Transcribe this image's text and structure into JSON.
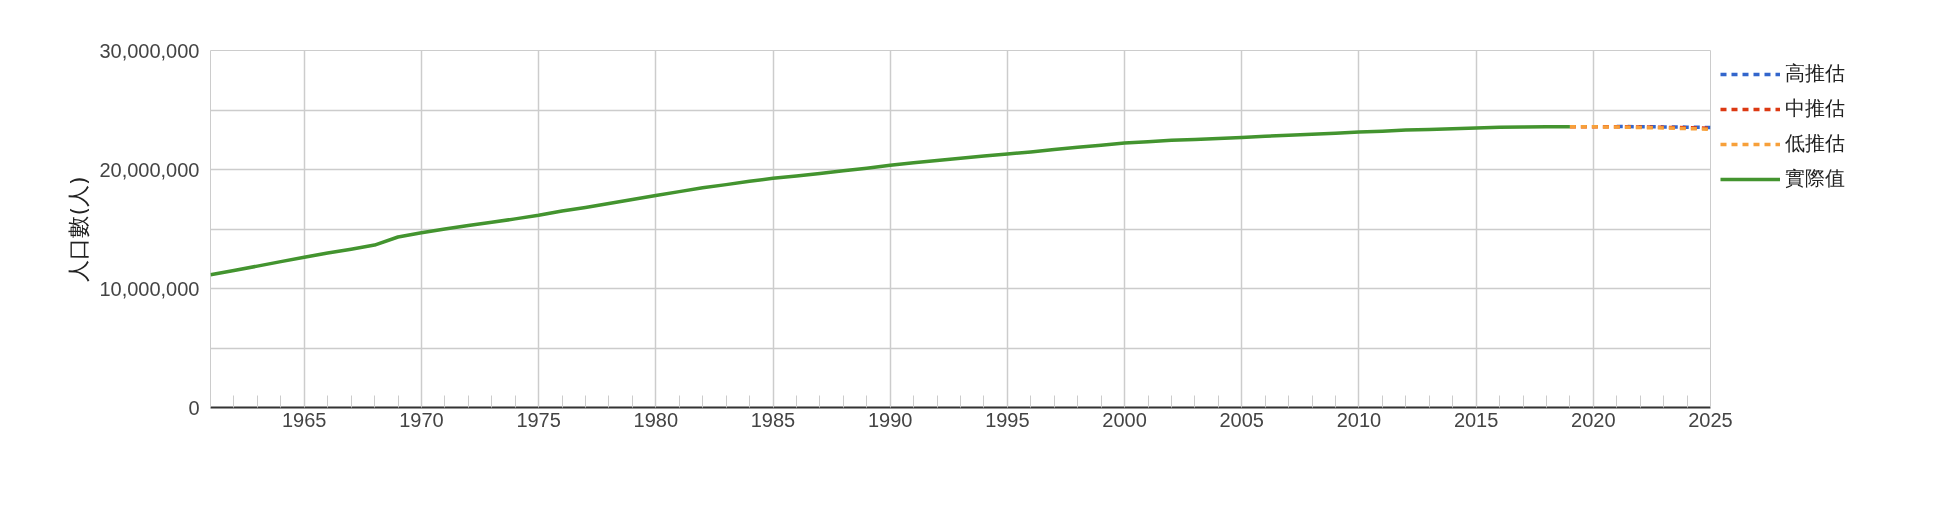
{
  "chart_data": {
    "type": "line",
    "ylabel": "人口數(人)",
    "x": [
      1961,
      1962,
      1963,
      1964,
      1965,
      1966,
      1967,
      1968,
      1969,
      1970,
      1971,
      1972,
      1973,
      1974,
      1975,
      1976,
      1977,
      1978,
      1979,
      1980,
      1981,
      1982,
      1983,
      1984,
      1985,
      1986,
      1987,
      1988,
      1989,
      1990,
      1991,
      1992,
      1993,
      1994,
      1995,
      1996,
      1997,
      1998,
      1999,
      2000,
      2001,
      2002,
      2003,
      2004,
      2005,
      2006,
      2007,
      2008,
      2009,
      2010,
      2011,
      2012,
      2013,
      2014,
      2015,
      2016,
      2017,
      2018,
      2019
    ],
    "series": [
      {
        "name": "高推估",
        "color": "#3366cc",
        "line_style": "dashed",
        "x": [
          2021,
          2022,
          2023,
          2024,
          2025
        ],
        "values": [
          23610000,
          23600000,
          23580000,
          23560000,
          23530000
        ]
      },
      {
        "name": "中推估",
        "color": "#dc3912",
        "line_style": "dashed",
        "x": [
          2019,
          2020,
          2021,
          2022,
          2023,
          2024,
          2025
        ],
        "values": [
          23600000,
          23600000,
          23590000,
          23570000,
          23540000,
          23510000,
          23470000
        ]
      },
      {
        "name": "低推估",
        "color": "#f7a03a",
        "line_style": "dashed",
        "x": [
          2019,
          2020,
          2021,
          2022,
          2023,
          2024,
          2025
        ],
        "values": [
          23600000,
          23590000,
          23570000,
          23530000,
          23490000,
          23440000,
          23380000
        ]
      },
      {
        "name": "實際值",
        "color": "#43942f",
        "line_style": "solid",
        "values": [
          11150000,
          11510000,
          11880000,
          12260000,
          12630000,
          12990000,
          13300000,
          13650000,
          14330000,
          14680000,
          15000000,
          15290000,
          15570000,
          15850000,
          16150000,
          16510000,
          16810000,
          17140000,
          17480000,
          17810000,
          18140000,
          18460000,
          18730000,
          19010000,
          19260000,
          19450000,
          19670000,
          19900000,
          20110000,
          20350000,
          20560000,
          20750000,
          20940000,
          21130000,
          21300000,
          21470000,
          21680000,
          21870000,
          22030000,
          22220000,
          22340000,
          22450000,
          22530000,
          22610000,
          22690000,
          22790000,
          22880000,
          22960000,
          23040000,
          23160000,
          23220000,
          23320000,
          23370000,
          23430000,
          23490000,
          23540000,
          23570000,
          23590000,
          23600000
        ]
      }
    ],
    "xlim": [
      1961,
      2025
    ],
    "xticks": [
      1965,
      1970,
      1975,
      1980,
      1985,
      1990,
      1995,
      2000,
      2005,
      2010,
      2015,
      2020,
      2025
    ],
    "ylim": [
      0,
      30000000
    ],
    "yticks": [
      {
        "value": 0,
        "label": "0"
      },
      {
        "value": 5000000,
        "label": null
      },
      {
        "value": 10000000,
        "label": "10,000,000"
      },
      {
        "value": 15000000,
        "label": null
      },
      {
        "value": 20000000,
        "label": "20,000,000"
      },
      {
        "value": 25000000,
        "label": null
      },
      {
        "value": 30000000,
        "label": "30,000,000"
      }
    ],
    "grid": true,
    "legend": "top right",
    "marker": "none"
  }
}
